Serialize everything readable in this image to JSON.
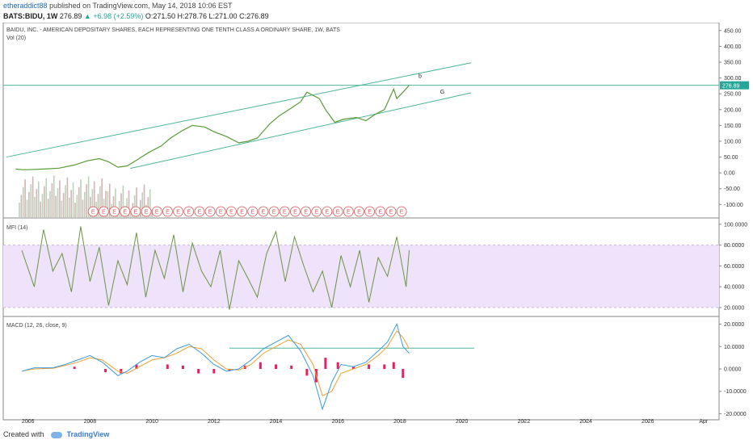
{
  "header": {
    "author": "etheraddict88",
    "published_text": "published on TradingView.com, May 14, 2018 10:06 EST",
    "symbol": "BATS:BIDU, 1W",
    "last": "276.89",
    "change": "+6.98 (+2.59%)",
    "open": "271.50",
    "high": "278.76",
    "low": "271.00",
    "close": "276.89",
    "open_label": "O:",
    "high_label": "H:",
    "low_label": "L:",
    "close_label": "C:"
  },
  "footer": {
    "created_with": "Created with",
    "brand": "TradingView"
  },
  "colors": {
    "price": "#5a9a3a",
    "channel": "#4fb39a",
    "mfi_line": "#6b9440",
    "mfi_band": "#efe3fb",
    "macd": "#3b9be0",
    "signal": "#f0a030",
    "hist": "#e91e63",
    "earnings": "#e05050"
  },
  "chart_data": [
    {
      "type": "line",
      "title": "BAIDU, INC. - AMERICAN DEPOSITARY SHARES, EACH REPRESENTING ONE TENTH CLASS A ORDINARY SHARE, 1W, BATS",
      "subtitle": "Vol (20)",
      "last_price_label": "276.89",
      "ylim": [
        -140,
        470
      ],
      "y_ticks": [
        "450.00",
        "400.00",
        "350.00",
        "300.00",
        "250.00",
        "200.00",
        "150.00",
        "100.00",
        "50.00",
        "0.00",
        "-50.00",
        "-100.00"
      ],
      "y_tick_values": [
        450,
        400,
        350,
        300,
        250,
        200,
        150,
        100,
        50,
        0,
        -50,
        -100
      ],
      "x_ticks": [
        "2006",
        "2008",
        "2010",
        "2012",
        "2014",
        "2016",
        "2018",
        "2020",
        "2022",
        "2024",
        "2026",
        "Apr"
      ],
      "x_tick_values": [
        2006,
        2008,
        2010,
        2012,
        2014,
        2016,
        2018,
        2020,
        2022,
        2024,
        2026,
        2027.8
      ],
      "series": [
        {
          "x": [
            2005.6,
            2005.8,
            2006.0,
            2006.5,
            2007.0,
            2007.5,
            2007.9,
            2008.3,
            2008.6,
            2008.9,
            2009.2,
            2009.5,
            2009.9,
            2010.3,
            2010.6,
            2011.0,
            2011.3,
            2011.7,
            2012.0,
            2012.4,
            2012.8,
            2013.1,
            2013.4,
            2013.8,
            2014.1,
            2014.5,
            2014.8,
            2015.0,
            2015.4,
            2015.6,
            2015.9,
            2016.2,
            2016.6,
            2016.9,
            2017.2,
            2017.5,
            2017.8,
            2017.9,
            2018.1,
            2018.3
          ],
          "y": [
            12,
            10,
            10,
            12,
            15,
            25,
            38,
            45,
            35,
            18,
            22,
            40,
            65,
            85,
            110,
            135,
            150,
            145,
            130,
            115,
            95,
            100,
            110,
            155,
            180,
            205,
            225,
            255,
            235,
            200,
            160,
            170,
            175,
            165,
            185,
            200,
            265,
            235,
            255,
            277
          ]
        }
      ],
      "channel_lines": [
        {
          "x": [
            2005.3,
            2020.3
          ],
          "y": [
            50,
            348
          ]
        },
        {
          "x": [
            2009.3,
            2020.3
          ],
          "y": [
            14,
            253
          ]
        }
      ],
      "hline": 276.89,
      "annotations": [
        "b",
        "G"
      ],
      "earnings_marker": "E",
      "earnings_count": 30
    },
    {
      "type": "line",
      "title": "MFI (14)",
      "ylim": [
        13,
        103
      ],
      "y_ticks": [
        "100.0000",
        "80.0000",
        "60.0000",
        "40.0000",
        "20.0000"
      ],
      "y_tick_values": [
        100,
        80,
        60,
        40,
        20
      ],
      "band": [
        20,
        80
      ],
      "series": [
        {
          "x": [
            2005.8,
            2006.2,
            2006.5,
            2006.8,
            2007.1,
            2007.4,
            2007.7,
            2008.0,
            2008.3,
            2008.6,
            2008.9,
            2009.2,
            2009.5,
            2009.8,
            2010.1,
            2010.4,
            2010.7,
            2011.0,
            2011.3,
            2011.6,
            2011.9,
            2012.2,
            2012.5,
            2012.8,
            2013.1,
            2013.4,
            2013.7,
            2014.0,
            2014.3,
            2014.6,
            2014.9,
            2015.2,
            2015.5,
            2015.8,
            2016.1,
            2016.4,
            2016.7,
            2017.0,
            2017.3,
            2017.6,
            2017.9,
            2018.2,
            2018.3
          ],
          "y": [
            75,
            40,
            95,
            55,
            72,
            35,
            98,
            45,
            78,
            22,
            65,
            42,
            92,
            30,
            75,
            48,
            90,
            35,
            82,
            55,
            40,
            75,
            18,
            65,
            48,
            30,
            72,
            93,
            45,
            88,
            60,
            35,
            55,
            20,
            70,
            40,
            75,
            25,
            68,
            50,
            88,
            40,
            75
          ]
        }
      ]
    },
    {
      "type": "line",
      "title": "MACD (12, 26, close, 9)",
      "ylim": [
        -22,
        22
      ],
      "y_ticks": [
        "20.0000",
        "10.0000",
        "0.0000",
        "-10.0000",
        "-20.0000"
      ],
      "y_tick_values": [
        20,
        10,
        0,
        -10,
        -20
      ],
      "hline": 9.3,
      "series": [
        {
          "name": "MACD",
          "x": [
            2005.8,
            2006.2,
            2006.8,
            2007.2,
            2007.6,
            2008.0,
            2008.4,
            2008.9,
            2009.2,
            2009.6,
            2010.0,
            2010.4,
            2010.8,
            2011.2,
            2011.6,
            2012.0,
            2012.4,
            2012.8,
            2013.2,
            2013.6,
            2014.0,
            2014.4,
            2014.8,
            2015.2,
            2015.5,
            2015.8,
            2016.1,
            2016.5,
            2016.9,
            2017.3,
            2017.6,
            2017.9,
            2018.1,
            2018.3
          ],
          "y": [
            -1,
            0.5,
            0.5,
            2,
            4,
            6,
            3,
            -3,
            -1,
            3,
            6,
            5,
            9,
            11,
            7,
            2,
            -1,
            0,
            4,
            9,
            12,
            15,
            8,
            -3,
            -18,
            -6,
            2,
            1,
            3,
            8,
            12,
            20,
            10,
            7
          ]
        },
        {
          "name": "Signal",
          "x": [
            2005.8,
            2006.2,
            2006.8,
            2007.2,
            2007.6,
            2008.0,
            2008.4,
            2008.9,
            2009.2,
            2009.6,
            2010.0,
            2010.4,
            2010.8,
            2011.2,
            2011.6,
            2012.0,
            2012.4,
            2012.8,
            2013.2,
            2013.6,
            2014.0,
            2014.4,
            2014.8,
            2015.2,
            2015.5,
            2015.8,
            2016.1,
            2016.5,
            2016.9,
            2017.3,
            2017.6,
            2017.9,
            2018.1,
            2018.3
          ],
          "y": [
            -1,
            0,
            0.3,
            1.5,
            3,
            5,
            4,
            -1,
            -2,
            1,
            4,
            5,
            7,
            10,
            9,
            4,
            0,
            -0.5,
            2,
            7,
            10,
            13,
            11,
            2,
            -12,
            -10,
            -2,
            0,
            2,
            6,
            10,
            17,
            14,
            9
          ]
        }
      ],
      "histogram": {
        "x": [
          2006.5,
          2007.5,
          2008.5,
          2009.0,
          2009.5,
          2010.5,
          2011.0,
          2011.5,
          2012.0,
          2012.5,
          2013.0,
          2013.5,
          2014.0,
          2014.5,
          2015.0,
          2015.3,
          2015.6,
          2016.0,
          2016.5,
          2017.0,
          2017.5,
          2017.8,
          2018.1
        ],
        "y": [
          0.5,
          1,
          -1.5,
          -2,
          2,
          2,
          1.5,
          -2,
          -2,
          -1,
          1.5,
          3,
          2,
          1.5,
          -3,
          -6,
          5,
          3,
          1,
          2,
          2,
          3,
          -4
        ]
      }
    }
  ]
}
